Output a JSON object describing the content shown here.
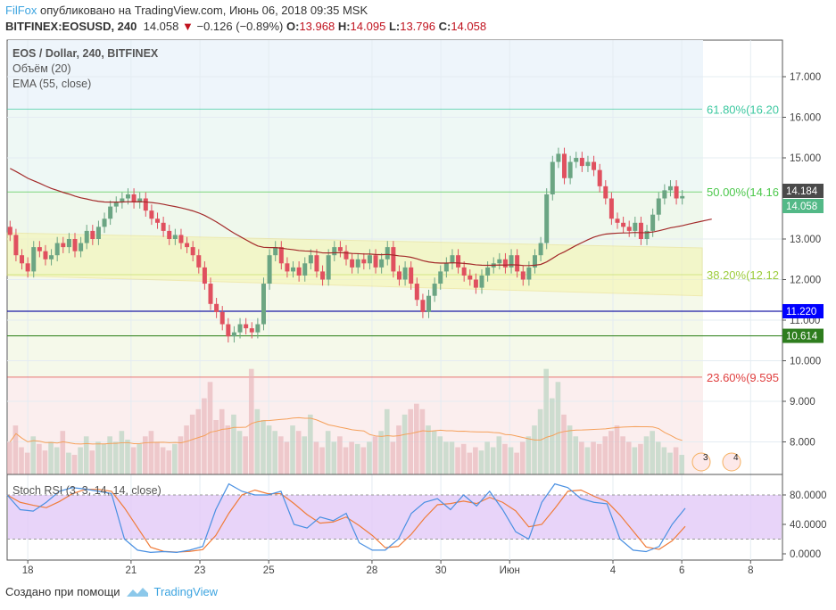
{
  "header": {
    "author": "FilFox",
    "published": "опубликовано на TradingView.com, Июнь 06, 2018 09:35 MSK",
    "symbol": "BITFINEX:EOSUSD, 240",
    "last": "14.058",
    "change": "−0.126 (−0.89%)",
    "o_label": "O:",
    "o": "13.968",
    "h_label": "H:",
    "h": "14.095",
    "l_label": "L:",
    "l": "13.796",
    "c_label": "C:",
    "c": "14.058"
  },
  "legend": {
    "series": "EOS / Dollar, 240, BITFINEX",
    "volume": "Объём (20)",
    "ema": "EMA (55, close)",
    "stoch": "Stoch RSI (3, 3, 14, 14, close)"
  },
  "footer": {
    "created": "Создано при помощи",
    "brand": "TradingView"
  },
  "colors": {
    "up": "#6ba583",
    "down": "#e0505f",
    "ema": "#a32a2a",
    "volume_ma": "#f5a05a",
    "stoch_k": "#4a90e2",
    "stoch_d": "#f07c3a",
    "stoch_band": "#e2c9f8"
  },
  "chart_data": {
    "type": "candlestick",
    "price_axis": {
      "range": [
        7.2,
        17.9
      ],
      "ticks": [
        "17.000",
        "16.000",
        "15.000",
        "13.000",
        "12.000",
        "11.000",
        "10.000",
        "9.000",
        "8.000"
      ],
      "tick_values": [
        17,
        16,
        15,
        13,
        12,
        11,
        10,
        9,
        8
      ]
    },
    "date_axis": {
      "ticks": [
        "18",
        "21",
        "23",
        "25",
        "28",
        "30",
        "Июн",
        "4",
        "6",
        "8"
      ],
      "tick_days": [
        18,
        21,
        23,
        25,
        28,
        30,
        32,
        35,
        37,
        39
      ],
      "start_day": 17.4,
      "end_day": 37.1
    },
    "price_labels": [
      {
        "value": 14.184,
        "text": "14.184",
        "color": "#4a4a4a"
      },
      {
        "value": 14.058,
        "text": "14.058",
        "color": "#53b987"
      },
      {
        "value": 11.22,
        "text": "11.220",
        "color": "#0000ff"
      },
      {
        "value": 10.614,
        "text": "10.614",
        "color": "#2e7d1e"
      }
    ],
    "horizontal_lines": [
      {
        "value": 11.22,
        "color": "#1a1aa6"
      },
      {
        "value": 10.614,
        "color": "#3d8a2a"
      }
    ],
    "fibonacci": [
      {
        "label": "61.80%(16.20",
        "value": 16.2,
        "color": "#3cc8a0"
      },
      {
        "label": "50.00%(14.16",
        "value": 14.16,
        "color": "#4cc84c"
      },
      {
        "label": "38.20%(12.12",
        "value": 12.12,
        "color": "#9ccc3c"
      },
      {
        "label": "23.60%(9.595",
        "value": 9.595,
        "color": "#e04040"
      }
    ],
    "channel": {
      "top": [
        13.15,
        12.78
      ],
      "bottom": [
        12.1,
        11.6
      ]
    },
    "closes": [
      13.1,
      12.6,
      12.4,
      12.2,
      12.8,
      12.7,
      12.5,
      12.6,
      12.9,
      12.8,
      13.0,
      12.7,
      12.9,
      13.2,
      13.0,
      13.3,
      13.5,
      13.8,
      13.9,
      14.0,
      14.1,
      13.9,
      14.0,
      13.7,
      13.5,
      13.4,
      13.2,
      13.0,
      13.1,
      12.9,
      12.8,
      12.6,
      12.3,
      11.9,
      11.4,
      11.2,
      10.9,
      10.6,
      10.7,
      10.9,
      10.8,
      10.7,
      10.9,
      11.9,
      12.6,
      12.8,
      12.4,
      12.2,
      12.3,
      12.1,
      12.4,
      12.6,
      12.2,
      12.0,
      12.6,
      12.8,
      12.7,
      12.5,
      12.3,
      12.5,
      12.4,
      12.6,
      12.3,
      12.5,
      12.8,
      12.2,
      12.0,
      12.3,
      11.9,
      11.5,
      11.2,
      11.6,
      11.9,
      12.2,
      12.4,
      12.6,
      12.3,
      12.1,
      12.0,
      11.8,
      12.1,
      12.3,
      12.4,
      12.5,
      12.3,
      12.6,
      12.2,
      12.0,
      12.3,
      12.6,
      12.9,
      14.1,
      14.9,
      15.1,
      14.5,
      14.9,
      15.0,
      14.8,
      14.9,
      14.7,
      14.3,
      14.0,
      13.5,
      13.4,
      13.3,
      13.2,
      13.4,
      13.0,
      13.2,
      13.6,
      14.0,
      14.2,
      14.3,
      14.0,
      14.058
    ],
    "volume": [
      30,
      45,
      25,
      20,
      35,
      28,
      22,
      30,
      25,
      40,
      20,
      18,
      25,
      35,
      22,
      30,
      28,
      35,
      30,
      40,
      32,
      25,
      28,
      35,
      40,
      30,
      25,
      22,
      28,
      35,
      45,
      55,
      60,
      70,
      85,
      50,
      60,
      45,
      55,
      40,
      35,
      97,
      60,
      50,
      45,
      40,
      35,
      30,
      45,
      40,
      35,
      55,
      30,
      25,
      40,
      30,
      35,
      25,
      30,
      28,
      25,
      30,
      35,
      40,
      60,
      30,
      45,
      55,
      60,
      65,
      60,
      45,
      40,
      35,
      30,
      30,
      25,
      28,
      20,
      25,
      22,
      30,
      25,
      35,
      28,
      25,
      20,
      30,
      35,
      45,
      60,
      97,
      70,
      85,
      55,
      45,
      35,
      30,
      25,
      30,
      28,
      35,
      40,
      45,
      35,
      30,
      25,
      28,
      35,
      40,
      30,
      25,
      20,
      25,
      18
    ],
    "stoch_k": [
      80,
      60,
      58,
      70,
      85,
      90,
      88,
      85,
      82,
      20,
      5,
      2,
      3,
      2,
      5,
      10,
      60,
      95,
      85,
      80,
      80,
      85,
      40,
      35,
      50,
      45,
      55,
      15,
      5,
      5,
      20,
      55,
      70,
      75,
      60,
      80,
      65,
      85,
      60,
      30,
      20,
      70,
      95,
      90,
      75,
      70,
      68,
      20,
      5,
      3,
      10,
      40,
      62
    ],
    "stoch_levels": {
      "upper": 80,
      "lower": 20,
      "ticks": [
        "80.0000",
        "40.0000",
        "0.0000"
      ],
      "tick_values": [
        80,
        40,
        0
      ]
    },
    "events": [
      {
        "label": "3"
      },
      {
        "label": "4"
      }
    ]
  }
}
